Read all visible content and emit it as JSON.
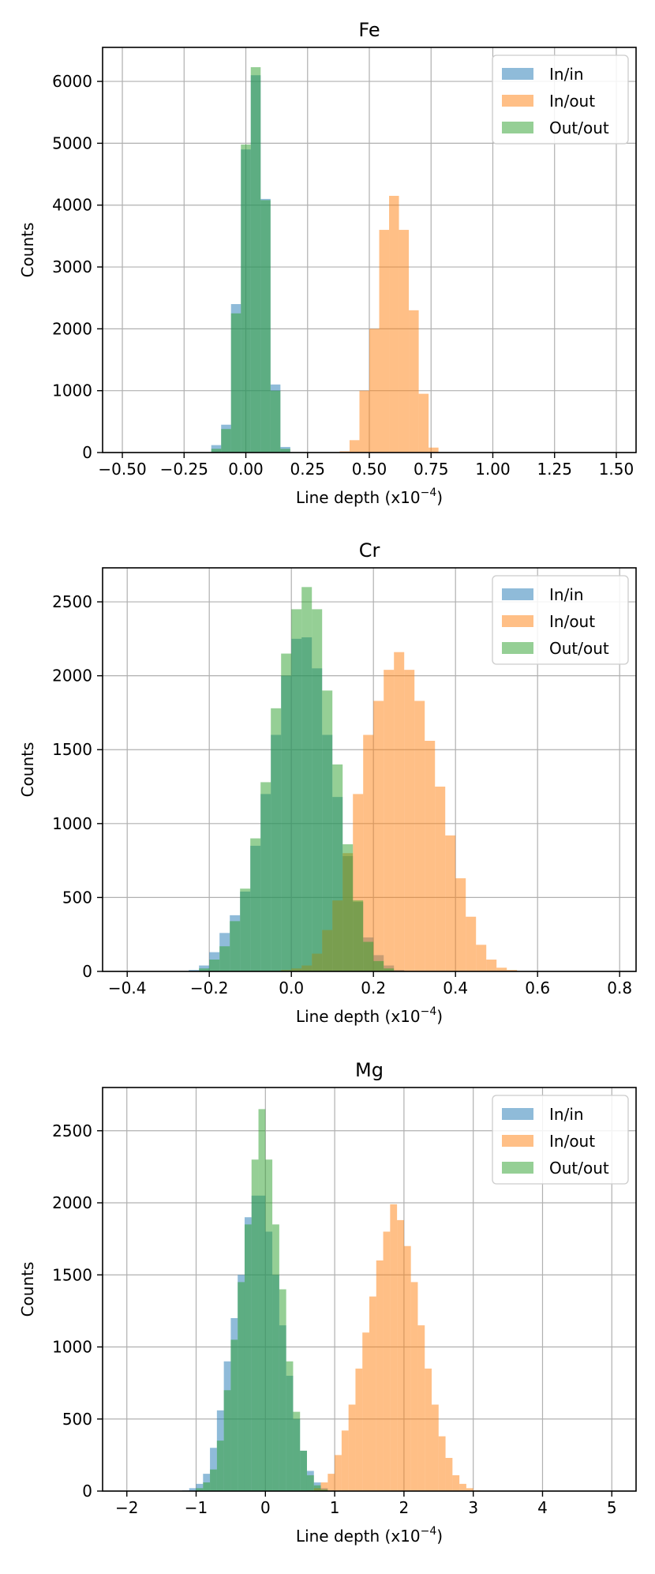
{
  "chart_data": [
    {
      "type": "histogram",
      "title": "Fe",
      "xlabel_base": "Line depth (x10",
      "xlabel_exp": "−4",
      "xlabel_close": ")",
      "ylabel": "Counts",
      "xlim": [
        -0.58,
        1.58
      ],
      "ylim": [
        0,
        6550
      ],
      "xticks": [
        -0.5,
        -0.25,
        0,
        0.25,
        0.5,
        0.75,
        1.0,
        1.25,
        1.5
      ],
      "xtick_labels": [
        "−0.50",
        "−0.25",
        "0.00",
        "0.25",
        "0.50",
        "0.75",
        "1.00",
        "1.25",
        "1.50"
      ],
      "yticks": [
        0,
        1000,
        2000,
        3000,
        4000,
        5000,
        6000
      ],
      "ytick_labels": [
        "0",
        "1000",
        "2000",
        "3000",
        "4000",
        "5000",
        "6000"
      ],
      "legend_position": "top-right",
      "grid": true,
      "series": [
        {
          "name": "In/in",
          "color": "#1f77b4",
          "bin_start": -0.5,
          "bin_width": 0.04,
          "counts": [
            0,
            0,
            0,
            0,
            0,
            0,
            0,
            0,
            0,
            120,
            450,
            2400,
            4900,
            6100,
            4100,
            1100,
            90,
            0,
            0,
            0,
            0,
            0,
            0,
            0,
            0,
            0,
            0,
            0,
            0,
            0,
            0,
            0,
            0,
            0,
            0,
            0,
            0,
            0,
            0,
            0,
            0,
            0,
            0,
            0,
            0,
            0,
            0,
            0,
            0,
            0
          ]
        },
        {
          "name": "In/out",
          "color": "#ff7f0e",
          "bin_start": -0.5,
          "bin_width": 0.04,
          "counts": [
            0,
            0,
            0,
            0,
            0,
            0,
            0,
            0,
            0,
            0,
            0,
            0,
            0,
            0,
            0,
            0,
            0,
            0,
            0,
            0,
            0,
            0,
            20,
            200,
            1000,
            2000,
            3600,
            4150,
            3600,
            2300,
            950,
            80,
            0,
            0,
            0,
            0,
            0,
            0,
            0,
            0,
            0,
            0,
            0,
            0,
            0,
            0,
            0,
            0,
            0,
            0
          ]
        },
        {
          "name": "Out/out",
          "color": "#2ca02c",
          "bin_start": -0.5,
          "bin_width": 0.04,
          "counts": [
            0,
            0,
            0,
            0,
            0,
            0,
            0,
            0,
            0,
            60,
            380,
            2250,
            4980,
            6230,
            4080,
            1000,
            60,
            0,
            0,
            0,
            0,
            0,
            0,
            0,
            0,
            0,
            0,
            0,
            0,
            0,
            0,
            0,
            0,
            0,
            0,
            0,
            0,
            0,
            0,
            0,
            0,
            0,
            0,
            0,
            0,
            0,
            0,
            0,
            0,
            0
          ]
        }
      ]
    },
    {
      "type": "histogram",
      "title": "Cr",
      "xlabel_base": "Line depth (x10",
      "xlabel_exp": "−4",
      "xlabel_close": ")",
      "ylabel": "Counts",
      "xlim": [
        -0.46,
        0.84
      ],
      "ylim": [
        0,
        2730
      ],
      "xticks": [
        -0.4,
        -0.2,
        0,
        0.2,
        0.4,
        0.6,
        0.8
      ],
      "xtick_labels": [
        "−0.4",
        "−0.2",
        "0.0",
        "0.2",
        "0.4",
        "0.6",
        "0.8"
      ],
      "yticks": [
        0,
        500,
        1000,
        1500,
        2000,
        2500
      ],
      "ytick_labels": [
        "0",
        "500",
        "1000",
        "1500",
        "2000",
        "2500"
      ],
      "legend_position": "top-right",
      "grid": true,
      "series": [
        {
          "name": "In/in",
          "color": "#1f77b4",
          "bin_start": -0.4,
          "bin_width": 0.025,
          "counts": [
            0,
            0,
            0,
            0,
            0,
            0,
            10,
            40,
            130,
            260,
            380,
            540,
            850,
            1200,
            1600,
            2000,
            2250,
            2260,
            2050,
            1600,
            1180,
            780,
            470,
            230,
            110,
            40,
            10,
            0,
            0,
            0,
            0,
            0,
            0,
            0,
            0,
            0,
            0,
            0,
            0,
            0,
            0,
            0,
            0,
            0,
            0,
            0,
            0,
            0
          ]
        },
        {
          "name": "In/out",
          "color": "#ff7f0e",
          "bin_start": -0.4,
          "bin_width": 0.025,
          "counts": [
            0,
            0,
            0,
            0,
            0,
            0,
            0,
            0,
            0,
            0,
            0,
            0,
            0,
            0,
            0,
            10,
            20,
            40,
            120,
            280,
            480,
            800,
            1200,
            1600,
            1830,
            2040,
            2160,
            2040,
            1830,
            1560,
            1250,
            920,
            630,
            370,
            180,
            80,
            25,
            10,
            0,
            0,
            0,
            0,
            0,
            0,
            0,
            0,
            0,
            0
          ]
        },
        {
          "name": "Out/out",
          "color": "#2ca02c",
          "bin_start": -0.4,
          "bin_width": 0.025,
          "counts": [
            0,
            0,
            0,
            0,
            0,
            0,
            0,
            20,
            80,
            170,
            340,
            560,
            900,
            1280,
            1780,
            2150,
            2450,
            2600,
            2450,
            1900,
            1400,
            860,
            480,
            200,
            70,
            20,
            0,
            0,
            0,
            0,
            0,
            0,
            0,
            0,
            0,
            0,
            0,
            0,
            0,
            0,
            0,
            0,
            0,
            0,
            0,
            0,
            0,
            0
          ]
        }
      ]
    },
    {
      "type": "histogram",
      "title": "Mg",
      "xlabel_base": "Line depth (x10",
      "xlabel_exp": "−4",
      "xlabel_close": ")",
      "ylabel": "Counts",
      "xlim": [
        -2.35,
        5.35
      ],
      "ylim": [
        0,
        2800
      ],
      "xticks": [
        -2,
        -1,
        0,
        1,
        2,
        3,
        4,
        5
      ],
      "xtick_labels": [
        "−2",
        "−1",
        "0",
        "1",
        "2",
        "3",
        "4",
        "5"
      ],
      "yticks": [
        0,
        500,
        1000,
        1500,
        2000,
        2500
      ],
      "ytick_labels": [
        "0",
        "500",
        "1000",
        "1500",
        "2000",
        "2500"
      ],
      "legend_position": "top-right",
      "grid": true,
      "series": [
        {
          "name": "In/in",
          "color": "#1f77b4",
          "bin_start": -2,
          "bin_width": 0.1,
          "counts": [
            0,
            0,
            0,
            0,
            0,
            0,
            0,
            0,
            5,
            20,
            50,
            120,
            300,
            560,
            900,
            1200,
            1500,
            1900,
            2050,
            2050,
            1800,
            1500,
            1150,
            800,
            500,
            280,
            140,
            60,
            20,
            5,
            0,
            0,
            0,
            0,
            0,
            0,
            0,
            0,
            0,
            0,
            0,
            0,
            0,
            0,
            0,
            0,
            0,
            0,
            0,
            0,
            0,
            0,
            0,
            0,
            0,
            0,
            0,
            0,
            0,
            0,
            0,
            0,
            0,
            0,
            0,
            0,
            0,
            0,
            0,
            0
          ]
        },
        {
          "name": "In/out",
          "color": "#ff7f0e",
          "bin_start": -2,
          "bin_width": 0.1,
          "counts": [
            0,
            0,
            0,
            0,
            0,
            0,
            0,
            0,
            0,
            0,
            0,
            0,
            0,
            0,
            0,
            0,
            0,
            0,
            0,
            0,
            0,
            0,
            0,
            0,
            0,
            0,
            5,
            20,
            60,
            120,
            250,
            420,
            600,
            850,
            1100,
            1350,
            1600,
            1800,
            1990,
            1880,
            1700,
            1450,
            1150,
            850,
            600,
            380,
            230,
            110,
            50,
            20,
            5,
            0,
            0,
            0,
            0,
            0,
            0,
            0,
            0,
            0,
            0,
            0,
            0,
            0,
            0,
            0,
            0,
            0,
            0,
            0
          ]
        },
        {
          "name": "Out/out",
          "color": "#2ca02c",
          "bin_start": -2,
          "bin_width": 0.1,
          "counts": [
            0,
            0,
            0,
            0,
            0,
            0,
            0,
            0,
            0,
            0,
            20,
            60,
            150,
            350,
            700,
            1050,
            1450,
            1850,
            2300,
            2650,
            2300,
            1850,
            1400,
            900,
            550,
            280,
            110,
            40,
            10,
            0,
            0,
            0,
            0,
            0,
            0,
            0,
            0,
            0,
            0,
            0,
            0,
            0,
            0,
            0,
            0,
            0,
            0,
            0,
            0,
            0,
            0,
            0,
            0,
            0,
            0,
            0,
            0,
            0,
            0,
            0,
            0,
            0,
            0,
            0,
            0,
            0,
            0,
            0,
            0,
            0
          ]
        }
      ]
    }
  ]
}
